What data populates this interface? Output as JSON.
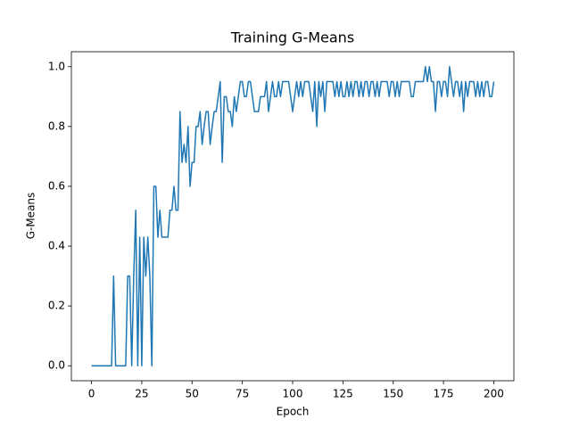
{
  "chart_data": {
    "type": "line",
    "title": "Training G-Means",
    "x_label": "Epoch",
    "y_label": "G-Means",
    "color": "#1f77b4",
    "x": [
      0,
      1,
      2,
      3,
      4,
      5,
      6,
      7,
      8,
      9,
      10,
      11,
      12,
      13,
      14,
      15,
      16,
      17,
      18,
      19,
      20,
      21,
      22,
      23,
      24,
      25,
      26,
      27,
      28,
      29,
      30,
      31,
      32,
      33,
      34,
      35,
      36,
      37,
      38,
      39,
      40,
      41,
      42,
      43,
      44,
      45,
      46,
      47,
      48,
      49,
      50,
      51,
      52,
      53,
      54,
      55,
      56,
      57,
      58,
      59,
      60,
      61,
      62,
      63,
      64,
      65,
      66,
      67,
      68,
      69,
      70,
      71,
      72,
      73,
      74,
      75,
      76,
      77,
      78,
      79,
      80,
      81,
      82,
      83,
      84,
      85,
      86,
      87,
      88,
      89,
      90,
      91,
      92,
      93,
      94,
      95,
      96,
      97,
      98,
      99,
      100,
      101,
      102,
      103,
      104,
      105,
      106,
      107,
      108,
      109,
      110,
      111,
      112,
      113,
      114,
      115,
      116,
      117,
      118,
      119,
      120,
      121,
      122,
      123,
      124,
      125,
      126,
      127,
      128,
      129,
      130,
      131,
      132,
      133,
      134,
      135,
      136,
      137,
      138,
      139,
      140,
      141,
      142,
      143,
      144,
      145,
      146,
      147,
      148,
      149,
      150,
      151,
      152,
      153,
      154,
      155,
      156,
      157,
      158,
      159,
      160,
      161,
      162,
      163,
      164,
      165,
      166,
      167,
      168,
      169,
      170,
      171,
      172,
      173,
      174,
      175,
      176,
      177,
      178,
      179,
      180,
      181,
      182,
      183,
      184,
      185,
      186,
      187,
      188,
      189,
      190,
      191,
      192,
      193,
      194,
      195,
      196,
      197,
      198,
      199,
      200
    ],
    "values": [
      0,
      0,
      0,
      0,
      0,
      0,
      0,
      0,
      0,
      0,
      0,
      0.3,
      0,
      0,
      0,
      0,
      0,
      0,
      0.3,
      0.3,
      0,
      0.3,
      0.52,
      0,
      0.43,
      0,
      0.43,
      0.3,
      0.43,
      0.3,
      0,
      0.6,
      0.6,
      0.43,
      0.52,
      0.43,
      0.43,
      0.43,
      0.43,
      0.52,
      0.52,
      0.6,
      0.52,
      0.52,
      0.85,
      0.68,
      0.74,
      0.68,
      0.8,
      0.6,
      0.68,
      0.68,
      0.8,
      0.8,
      0.85,
      0.74,
      0.8,
      0.85,
      0.85,
      0.74,
      0.8,
      0.85,
      0.85,
      0.9,
      0.95,
      0.68,
      0.9,
      0.9,
      0.85,
      0.85,
      0.8,
      0.9,
      0.85,
      0.9,
      0.95,
      0.95,
      0.9,
      0.9,
      0.95,
      0.95,
      0.9,
      0.85,
      0.85,
      0.85,
      0.9,
      0.9,
      0.9,
      0.95,
      0.85,
      0.9,
      0.95,
      0.9,
      0.9,
      0.95,
      0.9,
      0.95,
      0.95,
      0.95,
      0.95,
      0.9,
      0.85,
      0.9,
      0.95,
      0.9,
      0.95,
      0.9,
      0.95,
      0.95,
      0.95,
      0.9,
      0.85,
      0.95,
      0.8,
      0.95,
      0.9,
      0.95,
      0.85,
      0.95,
      0.95,
      0.95,
      0.95,
      0.9,
      0.95,
      0.9,
      0.95,
      0.9,
      0.9,
      0.95,
      0.9,
      0.95,
      0.9,
      0.95,
      0.95,
      0.9,
      0.95,
      0.9,
      0.95,
      0.95,
      0.9,
      0.95,
      0.95,
      0.9,
      0.95,
      0.9,
      0.95,
      0.95,
      0.95,
      0.95,
      0.9,
      0.95,
      0.95,
      0.9,
      0.95,
      0.9,
      0.95,
      0.95,
      0.95,
      0.95,
      0.95,
      0.9,
      0.9,
      0.95,
      0.95,
      0.95,
      0.95,
      0.95,
      1.0,
      0.95,
      1.0,
      0.95,
      0.95,
      0.85,
      0.95,
      0.95,
      0.9,
      0.95,
      0.95,
      0.9,
      1.0,
      0.95,
      0.9,
      0.95,
      0.95,
      0.9,
      0.95,
      0.85,
      0.95,
      0.9,
      0.95,
      0.95,
      0.95,
      0.9,
      0.95,
      0.9,
      0.95,
      0.9,
      0.95,
      0.95,
      0.9,
      0.9,
      0.95
    ],
    "xlim": [
      -10,
      210
    ],
    "xticks": [
      0,
      25,
      50,
      75,
      100,
      125,
      150,
      175,
      200
    ],
    "ylim": [
      -0.05,
      1.05
    ],
    "yticks": [
      {
        "value": 0,
        "label": "0.0"
      },
      0.2,
      0.4,
      0.6,
      0.8,
      {
        "value": 1,
        "label": "1.0"
      }
    ]
  }
}
